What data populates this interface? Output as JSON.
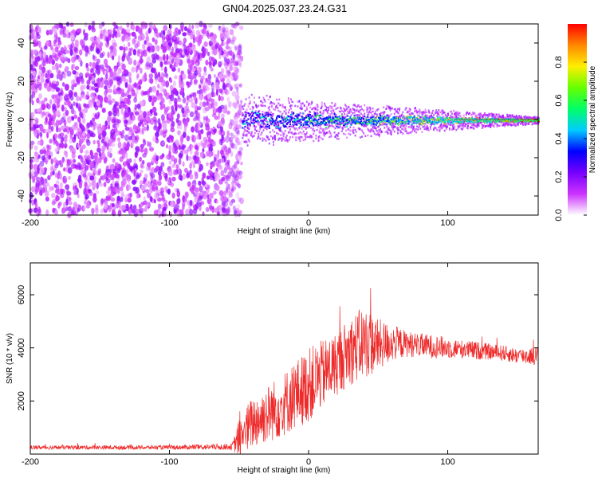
{
  "title": "GN04.2025.037.23.24.G31",
  "chart_data": [
    {
      "type": "heatmap",
      "name": "spectrogram",
      "xlabel": "Height of straight line (km)",
      "ylabel": "Frequency (Hz)",
      "xlim": [
        -200,
        165
      ],
      "ylim": [
        -50,
        50
      ],
      "xticks": [
        -200,
        -100,
        0,
        100
      ],
      "xtick_labels": [
        "-200",
        "-100",
        "0",
        "100"
      ],
      "yticks": [
        -40,
        -20,
        0,
        20,
        40
      ],
      "ytick_labels": [
        "-40",
        "-20",
        "0",
        "20",
        "40"
      ],
      "noise_region_km": [
        -200,
        -48
      ],
      "signal_line_freq_hz": 0,
      "colorbar": {
        "label": "Normalized spectral amplitude",
        "range": [
          0.0,
          1.0
        ],
        "ticks": [
          0.0,
          0.2,
          0.4,
          0.6,
          0.8
        ],
        "tick_labels": [
          "0.0",
          "0.2",
          "0.4",
          "0.6",
          "0.8"
        ],
        "colormap": [
          "#ffffff",
          "#cc33ff",
          "#7700ff",
          "#0000ff",
          "#00ccff",
          "#00ff66",
          "#66ff00",
          "#ffee00",
          "#ff8800",
          "#ff0000"
        ]
      }
    },
    {
      "type": "line",
      "name": "snr",
      "xlabel": "Height of straight line (km)",
      "ylabel": "SNR (10 * v/v)",
      "xlim": [
        -200,
        165
      ],
      "ylim": [
        0,
        7200
      ],
      "xticks": [
        -200,
        -100,
        0,
        100
      ],
      "xtick_labels": [
        "-200",
        "-100",
        "0",
        "100"
      ],
      "yticks": [
        2000,
        4000,
        6000
      ],
      "ytick_labels": [
        "2000",
        "4000",
        "6000"
      ],
      "color": "#ee2a2a",
      "envelope": {
        "x": [
          -200,
          -100,
          -55,
          -50,
          -45,
          -40,
          -30,
          -20,
          -10,
          0,
          10,
          20,
          30,
          40,
          50,
          60,
          70,
          80,
          90,
          100,
          110,
          120,
          130,
          140,
          150,
          165
        ],
        "mean": [
          250,
          250,
          280,
          600,
          900,
          1200,
          1500,
          1800,
          2200,
          2600,
          3000,
          3400,
          3900,
          4200,
          4100,
          4200,
          4150,
          4100,
          4050,
          4000,
          3950,
          3900,
          3850,
          3800,
          3700,
          3700
        ],
        "amp": [
          80,
          80,
          120,
          700,
          900,
          1000,
          1100,
          1200,
          1300,
          1400,
          1300,
          1200,
          1300,
          1400,
          1000,
          700,
          500,
          450,
          450,
          400,
          350,
          350,
          300,
          300,
          300,
          350
        ]
      }
    }
  ]
}
